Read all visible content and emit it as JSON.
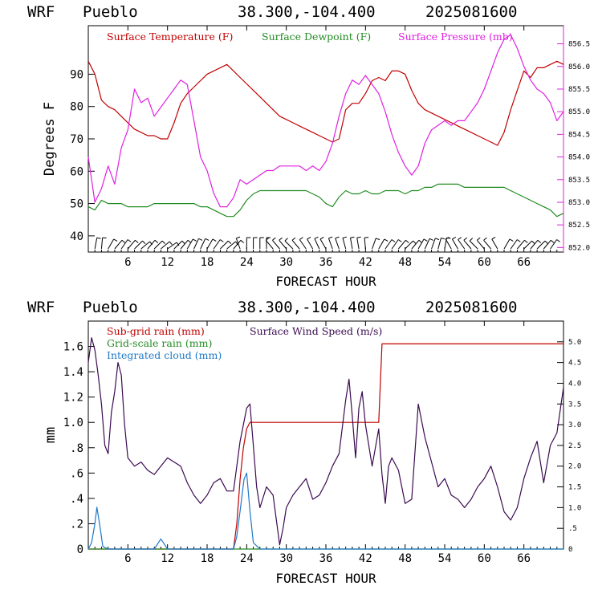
{
  "header": {
    "model": "WRF",
    "station": "Pueblo",
    "location": "38.300,-104.400",
    "run": "2025081600"
  },
  "colors": {
    "temperature": "#c00000",
    "dewpoint": "#228b22",
    "pressure": "#e020e0",
    "subgrid_rain": "#c00000",
    "grid_rain": "#228b22",
    "cloud": "#1e78c8",
    "wind": "#3a0a50"
  },
  "chart_data": [
    {
      "type": "line",
      "xlabel": "FORECAST HOUR",
      "ylabel": "Degrees F",
      "xlim": [
        0,
        72
      ],
      "ylim": [
        35,
        105
      ],
      "y2lim": [
        851.9,
        856.9
      ],
      "xticks": [
        "6",
        "12",
        "18",
        "24",
        "30",
        "36",
        "42",
        "48",
        "54",
        "60",
        "66"
      ],
      "yticks": [
        "40",
        "50",
        "60",
        "70",
        "80",
        "90"
      ],
      "y2ticks": [
        "852.0",
        "852.5",
        "853.0",
        "853.5",
        "854.0",
        "854.5",
        "855.0",
        "855.5",
        "856.0",
        "856.5"
      ],
      "grid": false,
      "legend_placement": "top",
      "wind_barbs": "shown along bottom",
      "series": [
        {
          "name": "Surface Temperature (F)",
          "axis": "left",
          "x": [
            0,
            1,
            2,
            3,
            4,
            5,
            6,
            7,
            8,
            9,
            10,
            11,
            12,
            13,
            14,
            15,
            16,
            17,
            18,
            19,
            20,
            21,
            22,
            23,
            24,
            25,
            26,
            27,
            28,
            29,
            30,
            31,
            32,
            33,
            34,
            35,
            36,
            37,
            38,
            39,
            40,
            41,
            42,
            43,
            44,
            45,
            46,
            47,
            48,
            49,
            50,
            51,
            52,
            53,
            54,
            55,
            56,
            57,
            58,
            59,
            60,
            61,
            62,
            63,
            64,
            65,
            66,
            67,
            68,
            69,
            70,
            71,
            72
          ],
          "values": [
            94,
            90,
            82,
            80,
            79,
            77,
            75,
            73,
            72,
            71,
            71,
            70,
            70,
            75,
            81,
            84,
            86,
            88,
            90,
            91,
            92,
            93,
            91,
            89,
            87,
            85,
            83,
            81,
            79,
            77,
            76,
            75,
            74,
            73,
            72,
            71,
            70,
            69,
            70,
            79,
            81,
            81,
            84,
            88,
            89,
            88,
            91,
            91,
            90,
            85,
            81,
            79,
            78,
            77,
            76,
            75,
            74,
            73,
            72,
            71,
            70,
            69,
            68,
            72,
            79,
            85,
            91,
            89,
            92,
            92,
            93,
            94,
            93
          ]
        },
        {
          "name": "Surface Dewpoint (F)",
          "axis": "left",
          "x": [
            0,
            1,
            2,
            3,
            4,
            5,
            6,
            7,
            8,
            9,
            10,
            11,
            12,
            13,
            14,
            15,
            16,
            17,
            18,
            19,
            20,
            21,
            22,
            23,
            24,
            25,
            26,
            27,
            28,
            29,
            30,
            31,
            32,
            33,
            34,
            35,
            36,
            37,
            38,
            39,
            40,
            41,
            42,
            43,
            44,
            45,
            46,
            47,
            48,
            49,
            50,
            51,
            52,
            53,
            54,
            55,
            56,
            57,
            58,
            59,
            60,
            61,
            62,
            63,
            64,
            65,
            66,
            67,
            68,
            69,
            70,
            71,
            72
          ],
          "values": [
            49,
            48,
            51,
            50,
            50,
            50,
            49,
            49,
            49,
            49,
            50,
            50,
            50,
            50,
            50,
            50,
            50,
            49,
            49,
            48,
            47,
            46,
            46,
            48,
            51,
            53,
            54,
            54,
            54,
            54,
            54,
            54,
            54,
            54,
            53,
            52,
            50,
            49,
            52,
            54,
            53,
            53,
            54,
            53,
            53,
            54,
            54,
            54,
            53,
            54,
            54,
            55,
            55,
            56,
            56,
            56,
            56,
            55,
            55,
            55,
            55,
            55,
            55,
            55,
            54,
            53,
            52,
            51,
            50,
            49,
            48,
            46,
            47
          ]
        },
        {
          "name": "Surface Pressure (mb)",
          "axis": "right",
          "x": [
            0,
            1,
            2,
            3,
            4,
            5,
            6,
            7,
            8,
            9,
            10,
            11,
            12,
            13,
            14,
            15,
            16,
            17,
            18,
            19,
            20,
            21,
            22,
            23,
            24,
            25,
            26,
            27,
            28,
            29,
            30,
            31,
            32,
            33,
            34,
            35,
            36,
            37,
            38,
            39,
            40,
            41,
            42,
            43,
            44,
            45,
            46,
            47,
            48,
            49,
            50,
            51,
            52,
            53,
            54,
            55,
            56,
            57,
            58,
            59,
            60,
            61,
            62,
            63,
            64,
            65,
            66,
            67,
            68,
            69,
            70,
            71,
            72
          ],
          "values": [
            854.0,
            853.0,
            853.3,
            853.8,
            853.4,
            854.2,
            854.6,
            855.5,
            855.2,
            855.3,
            854.9,
            855.1,
            855.3,
            855.5,
            855.7,
            855.6,
            854.8,
            854.0,
            853.7,
            853.2,
            852.9,
            852.9,
            853.1,
            853.5,
            853.4,
            853.5,
            853.6,
            853.7,
            853.7,
            853.8,
            853.8,
            853.8,
            853.8,
            853.7,
            853.8,
            853.7,
            853.9,
            854.3,
            854.9,
            855.4,
            855.7,
            855.6,
            855.8,
            855.6,
            855.4,
            855.0,
            854.5,
            854.1,
            853.8,
            853.6,
            853.8,
            854.3,
            854.6,
            854.7,
            854.8,
            854.7,
            854.8,
            854.8,
            855.0,
            855.2,
            855.5,
            855.9,
            856.3,
            856.6,
            856.7,
            856.4,
            856.0,
            855.7,
            855.5,
            855.4,
            855.2,
            854.8,
            855.0
          ]
        }
      ]
    },
    {
      "type": "line",
      "xlabel": "FORECAST HOUR",
      "ylabel": "mm",
      "xlim": [
        0,
        72
      ],
      "ylim": [
        0,
        1.8
      ],
      "y2lim": [
        0,
        5.5
      ],
      "xticks": [
        "6",
        "12",
        "18",
        "24",
        "30",
        "36",
        "42",
        "48",
        "54",
        "60",
        "66"
      ],
      "yticks": [
        "0",
        ".2",
        ".4",
        ".6",
        ".8",
        "1.0",
        "1.2",
        "1.4",
        "1.6"
      ],
      "y2ticks": [
        "0",
        ".5",
        "1.0",
        "1.5",
        "2.0",
        "2.5",
        "3.0",
        "3.5",
        "4.0",
        "4.5",
        "5.0"
      ],
      "grid": false,
      "legend_placement": "top",
      "series": [
        {
          "name": "Sub-grid rain (mm)",
          "axis": "left",
          "x": [
            0,
            22,
            22.5,
            23,
            23.5,
            24,
            24.5,
            25,
            44,
            44.5,
            72
          ],
          "values": [
            0,
            0,
            0.2,
            0.55,
            0.8,
            0.95,
            1.0,
            1.0,
            1.0,
            1.62,
            1.62
          ]
        },
        {
          "name": "Grid-scale rain (mm)",
          "axis": "left",
          "x": [
            0,
            72
          ],
          "values": [
            0,
            0
          ]
        },
        {
          "name": "Integrated cloud (mm)",
          "axis": "left",
          "x": [
            0,
            0.5,
            1,
            1.3,
            1.7,
            2.2,
            3,
            10,
            10.5,
            11,
            11.5,
            12,
            22,
            22.5,
            23,
            23.6,
            24,
            24.5,
            25,
            26,
            72
          ],
          "values": [
            0,
            0.05,
            0.2,
            0.33,
            0.2,
            0.02,
            0,
            0,
            0.04,
            0.08,
            0.04,
            0,
            0,
            0.1,
            0.3,
            0.55,
            0.6,
            0.3,
            0.05,
            0,
            0
          ]
        },
        {
          "name": "Surface Wind Speed (m/s)",
          "axis": "right",
          "x": [
            0,
            0.5,
            1,
            1.5,
            2,
            2.5,
            3,
            3.5,
            4,
            4.5,
            5,
            5.5,
            6,
            7,
            8,
            9,
            10,
            11,
            12,
            13,
            14,
            15,
            16,
            17,
            18,
            19,
            20,
            21,
            22,
            23,
            23.5,
            24,
            24.5,
            25,
            25.5,
            26,
            27,
            28,
            29,
            29.5,
            30,
            31,
            32,
            33,
            34,
            35,
            36,
            37,
            38,
            39,
            39.5,
            40,
            40.5,
            41,
            41.5,
            42,
            43,
            44,
            44.5,
            45,
            45.5,
            46,
            47,
            48,
            49,
            50,
            51,
            52,
            53,
            54,
            55,
            56,
            57,
            58,
            59,
            60,
            61,
            62,
            63,
            64,
            65,
            66,
            67,
            68,
            69,
            70,
            71,
            72
          ],
          "values": [
            4.5,
            5.1,
            4.8,
            4.2,
            3.5,
            2.5,
            2.3,
            3.3,
            3.8,
            4.5,
            4.2,
            3.0,
            2.2,
            2.0,
            2.1,
            1.9,
            1.8,
            2.0,
            2.2,
            2.1,
            2.0,
            1.6,
            1.3,
            1.1,
            1.3,
            1.6,
            1.7,
            1.4,
            1.4,
            2.6,
            3.0,
            3.4,
            3.5,
            2.5,
            1.5,
            1.0,
            1.5,
            1.3,
            0.1,
            0.5,
            1.0,
            1.3,
            1.5,
            1.7,
            1.2,
            1.3,
            1.6,
            2.0,
            2.3,
            3.6,
            4.1,
            3.2,
            2.2,
            3.4,
            3.8,
            3.0,
            2.0,
            2.9,
            1.8,
            1.1,
            2.0,
            2.2,
            1.9,
            1.1,
            1.2,
            3.5,
            2.7,
            2.1,
            1.5,
            1.7,
            1.3,
            1.2,
            1.0,
            1.2,
            1.5,
            1.7,
            2.0,
            1.5,
            0.9,
            0.7,
            1.0,
            1.7,
            2.2,
            2.6,
            1.6,
            2.5,
            2.8,
            3.9
          ]
        }
      ]
    }
  ]
}
